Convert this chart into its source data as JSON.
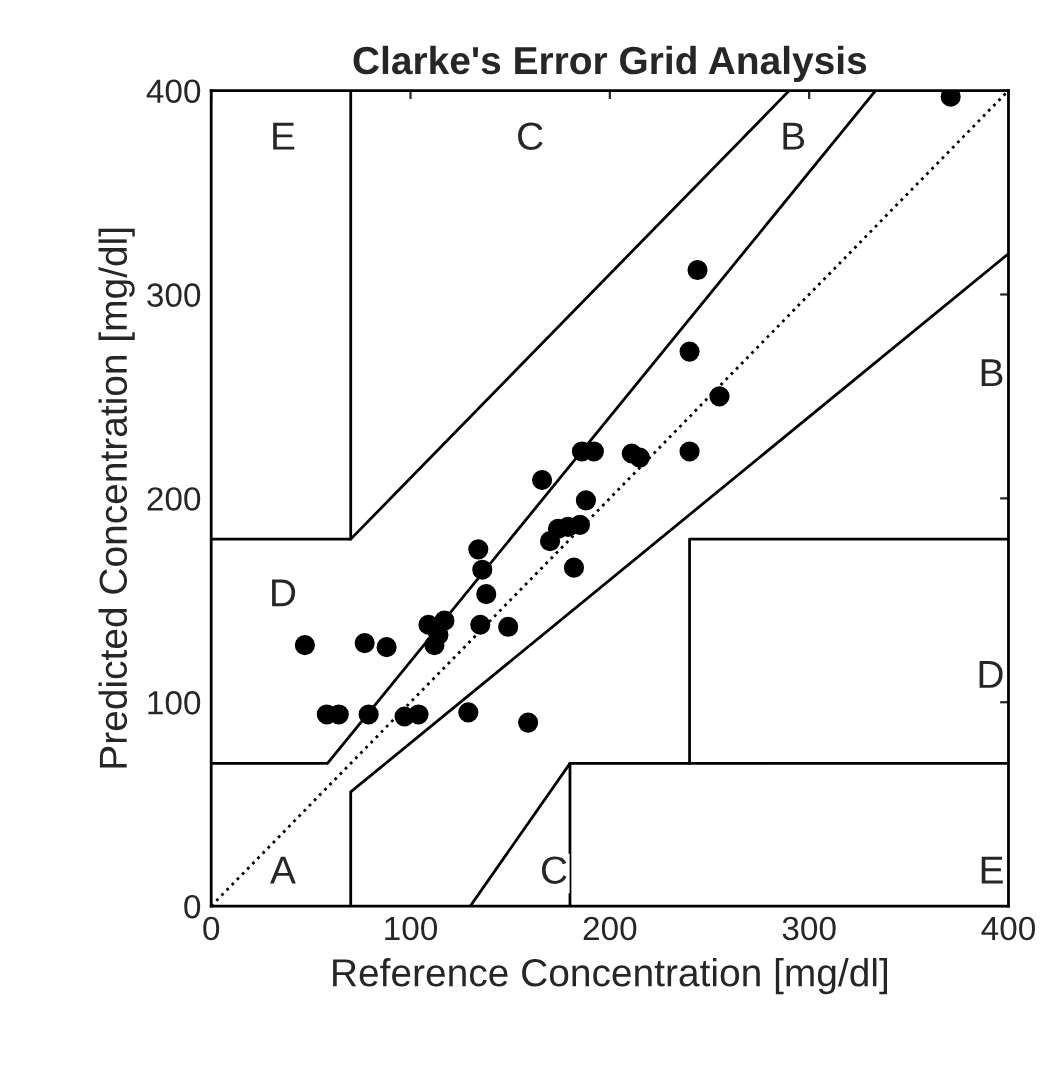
{
  "chart_data": {
    "type": "scatter",
    "title": "Clarke's Error Grid Analysis",
    "xlabel": "Reference Concentration [mg/dl]",
    "ylabel": "Predicted Concentration [mg/dl]",
    "xlim": [
      0,
      400
    ],
    "ylim": [
      0,
      400
    ],
    "xticks": [
      0,
      100,
      200,
      300,
      400
    ],
    "yticks": [
      0,
      100,
      200,
      300,
      400
    ],
    "grid": false,
    "legend": false,
    "series": [
      {
        "marker": "circle",
        "color": "#000000",
        "x": [
          371,
          244,
          240,
          255,
          186,
          192,
          211,
          215,
          240,
          166,
          188,
          170,
          174,
          179,
          185,
          182,
          134,
          136,
          138,
          109,
          117,
          114,
          112,
          135,
          149,
          47,
          77,
          88,
          58,
          64,
          79,
          97,
          104,
          129,
          159
        ],
        "values": [
          397,
          312,
          272,
          250,
          223,
          223,
          222,
          220,
          223,
          209,
          199,
          179,
          185,
          186,
          187,
          166,
          175,
          165,
          153,
          138,
          140,
          133,
          128,
          138,
          137,
          128,
          129,
          127,
          94,
          94,
          94,
          93,
          94,
          95,
          90
        ]
      },
      {
        "type": "line",
        "color": "#000000",
        "line_style": "dotted",
        "x": [
          0,
          400
        ],
        "values": [
          0,
          400
        ]
      },
      {
        "type": "line",
        "color": "#000000",
        "line_style": "solid",
        "x": [
          0,
          58.33,
          333.33
        ],
        "values": [
          70,
          70,
          400
        ]
      },
      {
        "type": "line",
        "color": "#000000",
        "line_style": "solid",
        "x": [
          70,
          70,
          400
        ],
        "values": [
          0,
          56,
          320
        ]
      },
      {
        "type": "line",
        "color": "#000000",
        "line_style": "solid",
        "x": [
          0,
          70,
          290
        ],
        "values": [
          180,
          180,
          400
        ]
      },
      {
        "type": "line",
        "color": "#000000",
        "line_style": "solid",
        "x": [
          70,
          70
        ],
        "values": [
          180,
          400
        ]
      },
      {
        "type": "line",
        "color": "#000000",
        "line_style": "solid",
        "x": [
          130,
          180,
          180
        ],
        "values": [
          0,
          70,
          0
        ]
      },
      {
        "type": "line",
        "color": "#000000",
        "line_style": "solid",
        "x": [
          180,
          400
        ],
        "values": [
          70,
          70
        ]
      },
      {
        "type": "line",
        "color": "#000000",
        "line_style": "solid",
        "x": [
          400,
          240,
          240
        ],
        "values": [
          180,
          180,
          70
        ]
      }
    ],
    "annotations": [
      "E",
      "C",
      "B",
      "B",
      "D",
      "D",
      "A",
      "C",
      "E"
    ]
  }
}
